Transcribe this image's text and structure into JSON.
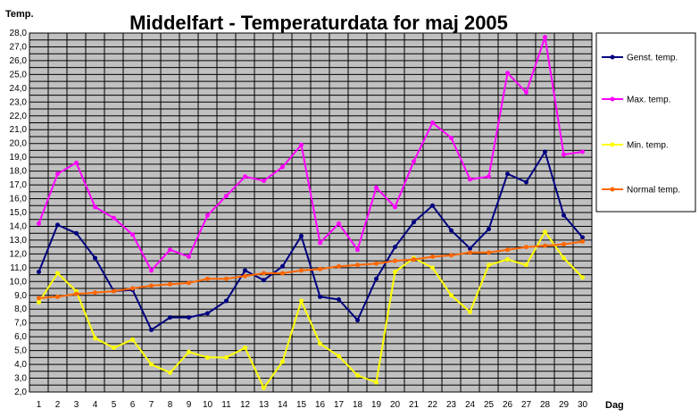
{
  "chart_data": {
    "type": "line",
    "title": "Middelfart - Temperaturdata for maj 2005",
    "ylabel": "Temp.",
    "xlabel": "Dag",
    "ylim": [
      2.0,
      28.0
    ],
    "y_tick_step": 0.5,
    "y_label_step": 1.0,
    "grid": true,
    "plot_background": "#c0c0c0",
    "legend_position": "right",
    "x": [
      1,
      2,
      3,
      4,
      5,
      6,
      7,
      8,
      9,
      10,
      11,
      12,
      13,
      14,
      15,
      16,
      17,
      18,
      19,
      20,
      21,
      22,
      23,
      24,
      25,
      26,
      27,
      28,
      29,
      30
    ],
    "series": [
      {
        "name": "Genst. temp.",
        "color": "#000080",
        "values": [
          10.7,
          14.1,
          13.5,
          11.7,
          9.3,
          9.4,
          6.5,
          7.4,
          7.4,
          7.7,
          8.6,
          10.8,
          10.1,
          11.1,
          13.3,
          8.9,
          8.7,
          7.2,
          10.2,
          12.5,
          14.3,
          15.5,
          13.7,
          12.4,
          13.8,
          17.8,
          17.2,
          19.4,
          14.8,
          13.2
        ]
      },
      {
        "name": "Max. temp.",
        "color": "#ff00ff",
        "values": [
          14.2,
          17.8,
          18.6,
          15.4,
          14.6,
          13.4,
          10.8,
          12.3,
          11.8,
          14.8,
          16.2,
          17.6,
          17.3,
          18.3,
          19.9,
          12.8,
          14.2,
          12.3,
          16.8,
          15.4,
          18.7,
          21.5,
          20.4,
          17.4,
          17.6,
          25.1,
          23.7,
          27.7,
          19.2,
          19.4
        ]
      },
      {
        "name": "Min. temp.",
        "color": "#ffff00",
        "values": [
          8.5,
          10.6,
          9.3,
          5.9,
          5.2,
          5.8,
          4.0,
          3.4,
          4.9,
          4.5,
          4.5,
          5.2,
          2.3,
          4.2,
          8.6,
          5.5,
          4.6,
          3.2,
          2.7,
          10.7,
          11.7,
          11.0,
          9.0,
          7.8,
          11.2,
          11.6,
          11.2,
          13.6,
          11.7,
          10.3
        ]
      },
      {
        "name": "Normal temp.",
        "color": "#ff6600",
        "values": [
          8.8,
          8.9,
          9.1,
          9.2,
          9.3,
          9.5,
          9.7,
          9.8,
          9.9,
          10.2,
          10.2,
          10.4,
          10.6,
          10.6,
          10.8,
          10.9,
          11.1,
          11.2,
          11.3,
          11.5,
          11.6,
          11.8,
          11.9,
          12.1,
          12.1,
          12.3,
          12.5,
          12.6,
          12.7,
          12.9
        ]
      }
    ]
  }
}
